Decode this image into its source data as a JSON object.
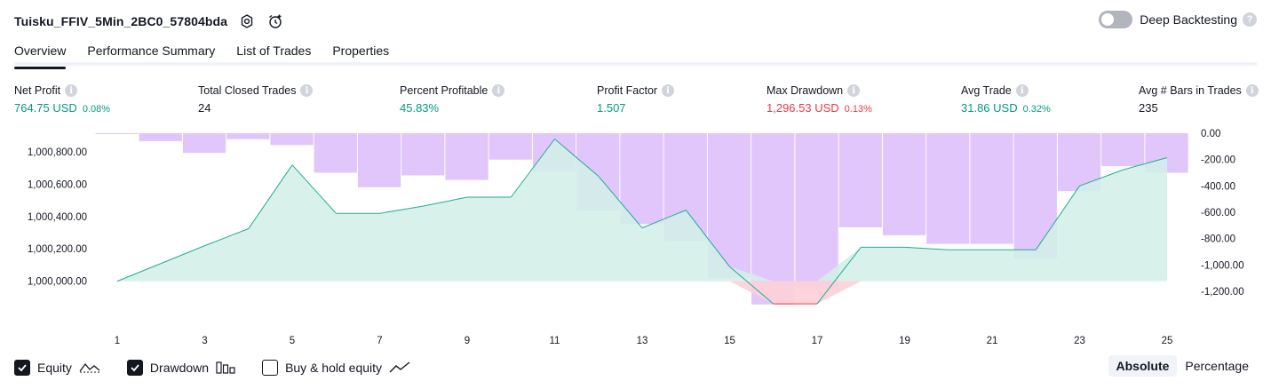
{
  "header": {
    "title": "Tuisku_FFIV_5Min_2BC0_57804bda",
    "deep_backtesting_label": "Deep Backtesting",
    "deep_backtesting_on": false,
    "help_glyph": "?"
  },
  "tabs": [
    {
      "label": "Overview",
      "active": true
    },
    {
      "label": "Performance Summary",
      "active": false
    },
    {
      "label": "List of Trades",
      "active": false
    },
    {
      "label": "Properties",
      "active": false
    }
  ],
  "metrics": [
    {
      "label": "Net Profit",
      "value": "764.75 USD",
      "pct": "0.08%",
      "color": "green"
    },
    {
      "label": "Total Closed Trades",
      "value": "24",
      "pct": "",
      "color": "dark"
    },
    {
      "label": "Percent Profitable",
      "value": "45.83%",
      "pct": "",
      "color": "green"
    },
    {
      "label": "Profit Factor",
      "value": "1.507",
      "pct": "",
      "color": "green"
    },
    {
      "label": "Max Drawdown",
      "value": "1,296.53 USD",
      "pct": "0.13%",
      "color": "red"
    },
    {
      "label": "Avg Trade",
      "value": "31.86 USD",
      "pct": "0.32%",
      "color": "green"
    },
    {
      "label": "Avg # Bars in Trades",
      "value": "235",
      "pct": "",
      "color": "dark"
    }
  ],
  "info_glyph": "i",
  "chart_data": {
    "type": "area",
    "x_ticks": [
      "1",
      "3",
      "5",
      "7",
      "9",
      "11",
      "13",
      "15",
      "17",
      "19",
      "21",
      "23",
      "25"
    ],
    "left_axis_ticks": [
      "1,000,800.00",
      "1,000,600.00",
      "1,000,400.00",
      "1,000,200.00",
      "1,000,000.00"
    ],
    "right_axis_ticks": [
      "0.00",
      "-200.00",
      "-400.00",
      "-600.00",
      "-800.00",
      "-1,000.00",
      "-1,200.00"
    ],
    "equity_baseline": 1000000,
    "equity_ylim": [
      999844,
      1000916
    ],
    "drawdown_ylim": [
      -1315,
      0
    ],
    "series": [
      {
        "name": "Equity",
        "x": [
          1,
          2,
          3,
          4,
          5,
          6,
          7,
          8,
          9,
          10,
          11,
          12,
          13,
          14,
          15,
          16,
          17,
          18,
          19,
          20,
          21,
          22,
          23,
          24,
          25
        ],
        "values": [
          1000000,
          1000110,
          1000220,
          1000325,
          1000720,
          1000420,
          1000420,
          1000465,
          1000520,
          1000520,
          1000880,
          1000650,
          1000330,
          1000440,
          1000090,
          999860,
          999860,
          1000210,
          1000210,
          1000195,
          1000195,
          1000195,
          1000590,
          1000690,
          1000765
        ]
      },
      {
        "name": "Drawdown",
        "x": [
          1,
          2,
          3,
          4,
          5,
          6,
          7,
          8,
          9,
          10,
          11,
          12,
          13,
          14,
          15,
          16,
          17,
          18,
          19,
          20,
          21,
          22,
          23,
          24,
          25
        ],
        "values": [
          0,
          -60,
          -150,
          -45,
          -90,
          -300,
          -410,
          -320,
          -355,
          -200,
          -290,
          -590,
          -690,
          -815,
          -1100,
          -1300,
          -1180,
          -715,
          -775,
          -840,
          -840,
          -950,
          -440,
          -250,
          -300
        ]
      }
    ],
    "colors": {
      "equity_line": "#22ab94",
      "equity_fill": "#d1f0e7",
      "drawdown_bar": "#e1c6fc",
      "drawdown_line": "#f23645",
      "drawdown_fill": "#fcd0d8"
    }
  },
  "legend": [
    {
      "label": "Equity",
      "checked": true,
      "icon": "equity-line-icon"
    },
    {
      "label": "Drawdown",
      "checked": true,
      "icon": "drawdown-bars-icon"
    },
    {
      "label": "Buy & hold equity",
      "checked": false,
      "icon": "buy-hold-line-icon"
    }
  ],
  "view_modes": [
    {
      "label": "Absolute",
      "active": true
    },
    {
      "label": "Percentage",
      "active": false
    }
  ]
}
